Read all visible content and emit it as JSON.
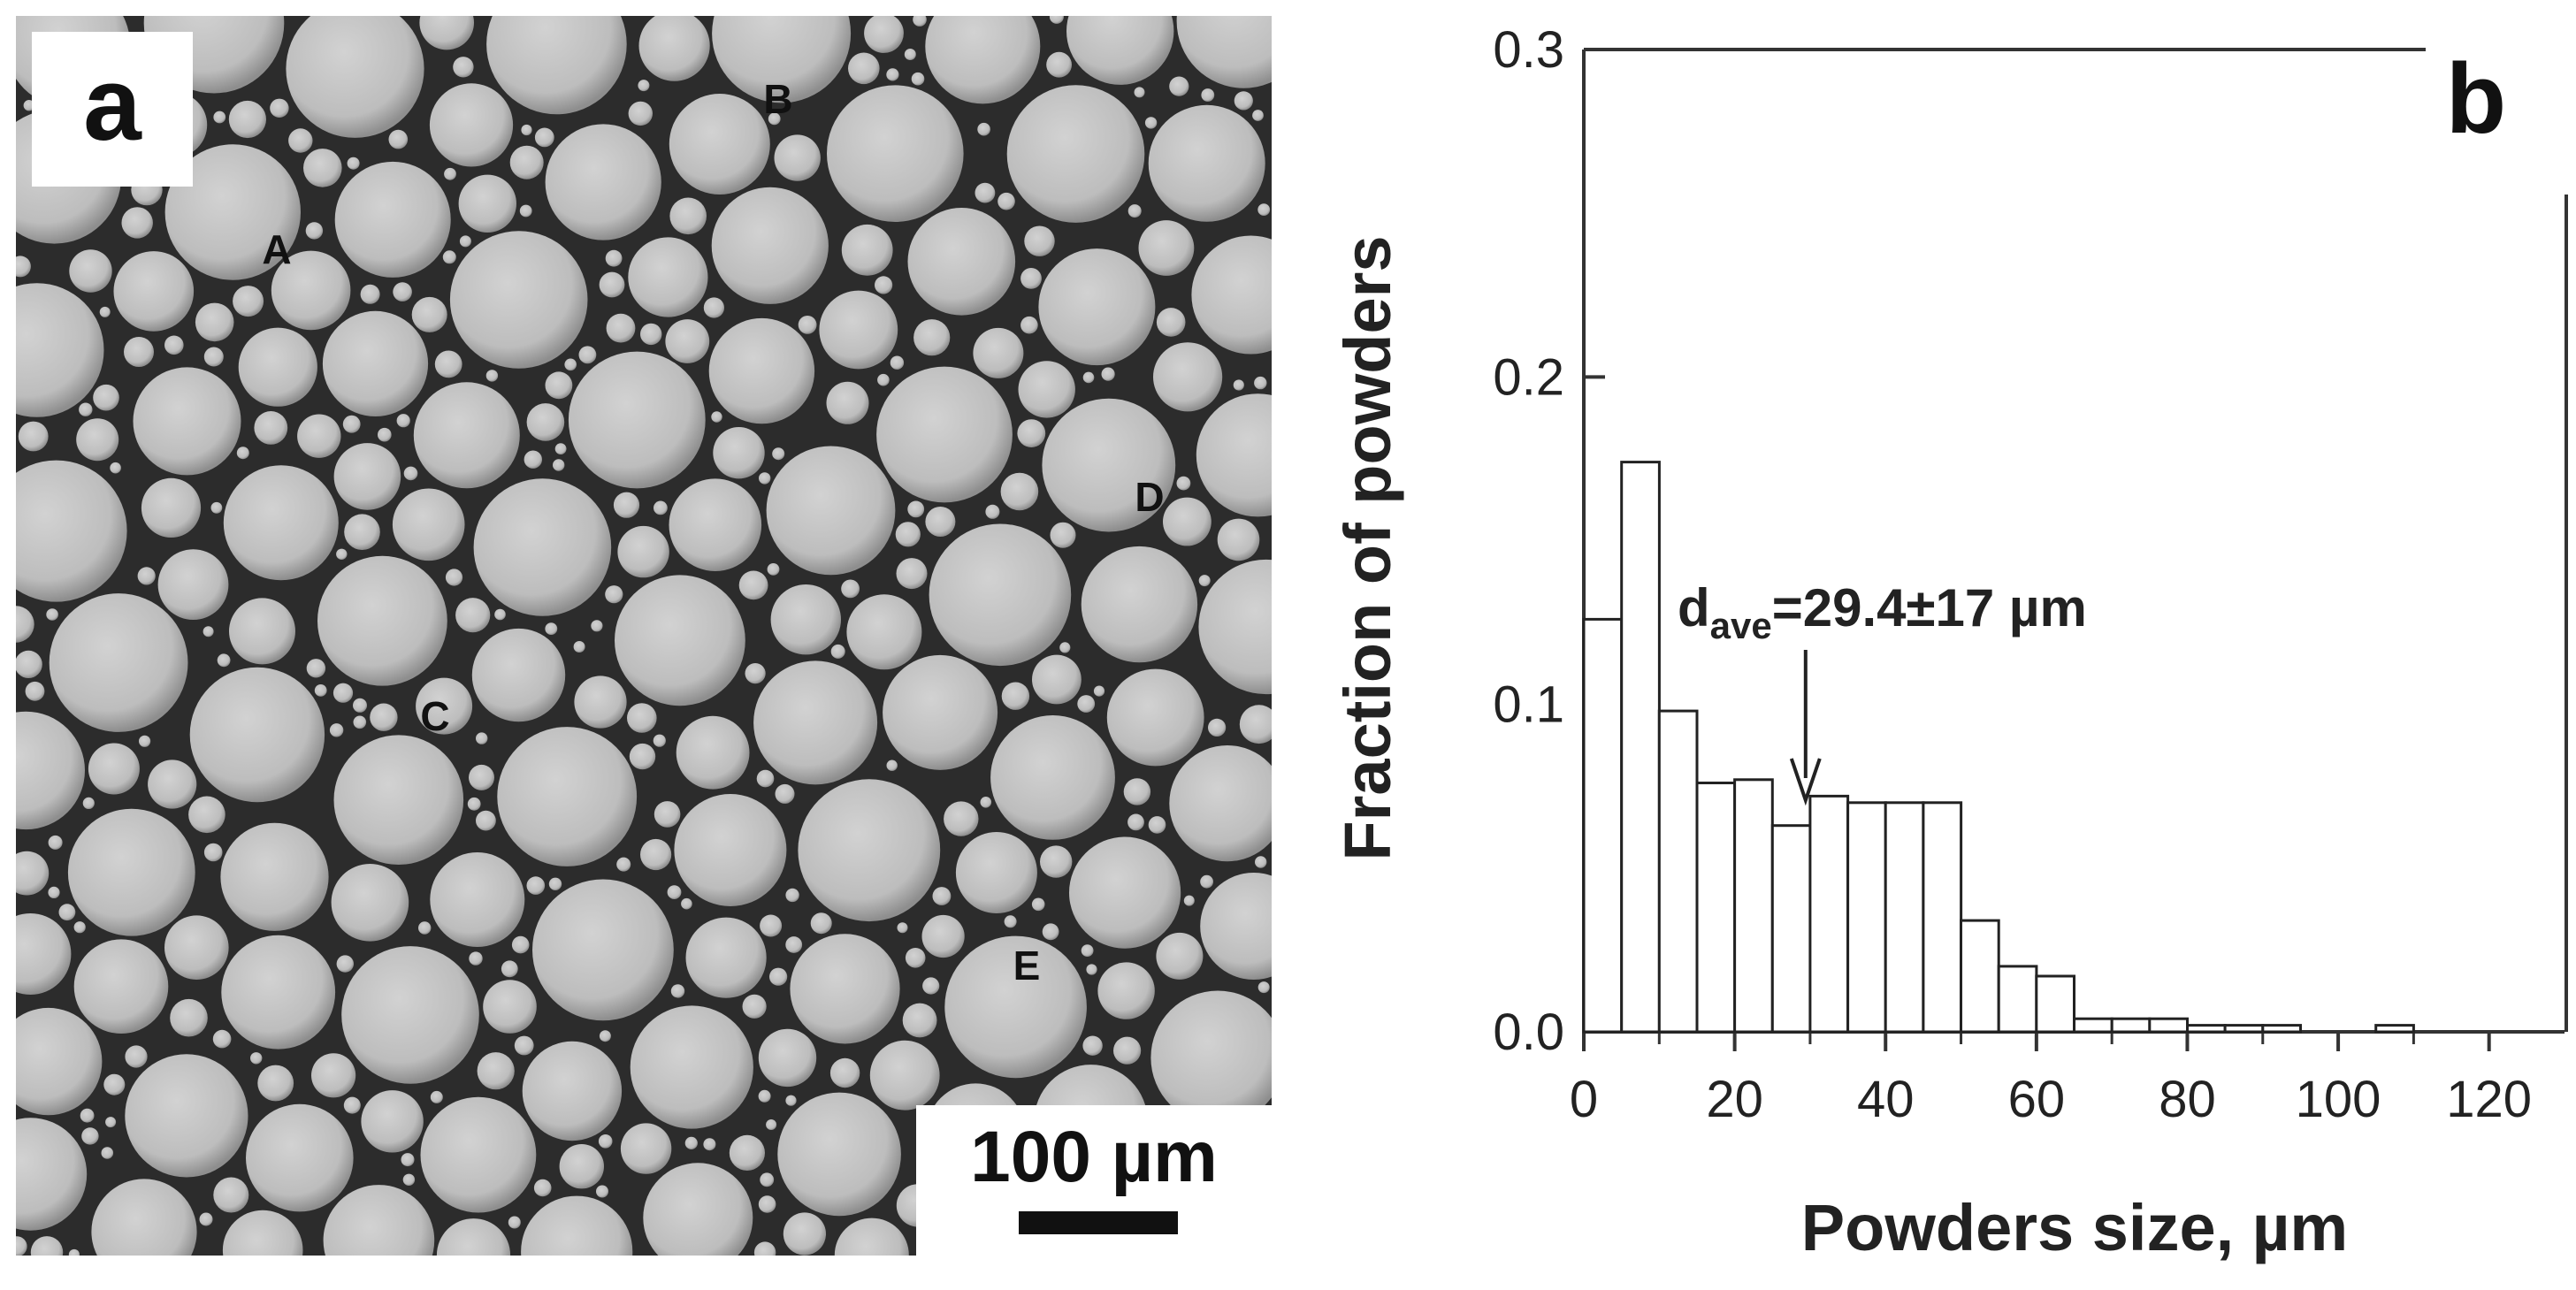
{
  "panel_a": {
    "panel_label": "a",
    "particle_labels": [
      "A",
      "B",
      "C",
      "D",
      "E"
    ],
    "scale_bar_label": "100 µm"
  },
  "panel_b": {
    "panel_label": "b"
  },
  "chart_data": {
    "type": "bar",
    "xlabel": "Powders size, µm",
    "ylabel": "Fraction of powders",
    "xlim": [
      0,
      130
    ],
    "ylim": [
      0,
      0.3
    ],
    "xticks": [
      0,
      20,
      40,
      60,
      80,
      100,
      120
    ],
    "yticks": [
      "0.0",
      "0.1",
      "0.2",
      "0.3"
    ],
    "bin_width": 5,
    "bin_starts": [
      0,
      5,
      10,
      15,
      20,
      25,
      30,
      35,
      40,
      45,
      50,
      55,
      60,
      65,
      70,
      75,
      80,
      85,
      90,
      95,
      100,
      105,
      110,
      115,
      120,
      125
    ],
    "values": [
      0.126,
      0.174,
      0.098,
      0.076,
      0.077,
      0.063,
      0.072,
      0.07,
      0.07,
      0.07,
      0.034,
      0.02,
      0.017,
      0.004,
      0.004,
      0.004,
      0.002,
      0.002,
      0.002,
      0,
      0,
      0.002,
      0,
      0,
      0,
      0
    ],
    "annotation": {
      "text_main": "d",
      "text_sub": "ave",
      "text_rest": "=29.4±17 µm",
      "arrow_x": 29.4
    }
  }
}
